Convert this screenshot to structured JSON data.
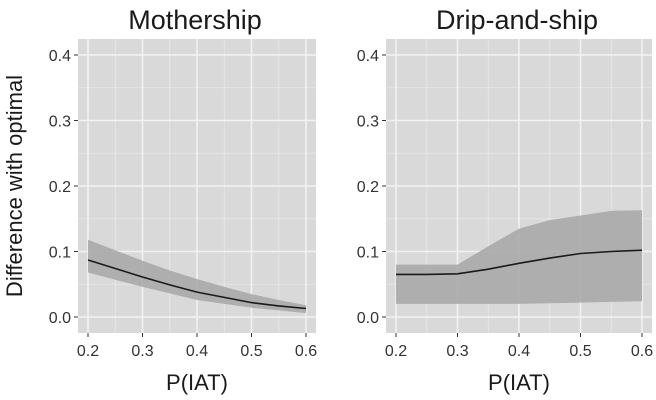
{
  "chart_data": [
    {
      "type": "line",
      "title": "Mothership",
      "xlabel": "P(IAT)",
      "ylabel": "Difference with optimal",
      "xlim": [
        0.2,
        0.6
      ],
      "ylim": [
        0,
        0.4
      ],
      "x_ticks": [
        "0.2",
        "0.3",
        "0.4",
        "0.5",
        "0.6"
      ],
      "y_ticks": [
        "0.0",
        "0.1",
        "0.2",
        "0.3",
        "0.4"
      ],
      "series": [
        {
          "name": "mean",
          "x": [
            0.2,
            0.25,
            0.3,
            0.35,
            0.4,
            0.45,
            0.5,
            0.55,
            0.6
          ],
          "y": [
            0.087,
            0.074,
            0.061,
            0.049,
            0.038,
            0.03,
            0.022,
            0.017,
            0.013
          ],
          "lower": [
            0.068,
            0.057,
            0.046,
            0.036,
            0.026,
            0.02,
            0.014,
            0.01,
            0.006
          ],
          "upper": [
            0.118,
            0.102,
            0.086,
            0.071,
            0.058,
            0.046,
            0.035,
            0.026,
            0.018
          ]
        }
      ],
      "colors": {
        "line": "#1a1a1a",
        "ribbon": "#a6a6a6",
        "panel": "#d9d9d9",
        "grid": "#f2f2f2"
      }
    },
    {
      "type": "line",
      "title": "Drip-and-ship",
      "xlabel": "P(IAT)",
      "ylabel": "",
      "xlim": [
        0.2,
        0.6
      ],
      "ylim": [
        0,
        0.4
      ],
      "x_ticks": [
        "0.2",
        "0.3",
        "0.4",
        "0.5",
        "0.6"
      ],
      "y_ticks": [
        "0.0",
        "0.1",
        "0.2",
        "0.3",
        "0.4"
      ],
      "series": [
        {
          "name": "mean",
          "x": [
            0.2,
            0.25,
            0.3,
            0.35,
            0.4,
            0.45,
            0.5,
            0.55,
            0.6
          ],
          "y": [
            0.065,
            0.065,
            0.066,
            0.073,
            0.082,
            0.09,
            0.097,
            0.1,
            0.102
          ],
          "lower": [
            0.02,
            0.02,
            0.02,
            0.02,
            0.02,
            0.021,
            0.022,
            0.023,
            0.024
          ],
          "upper": [
            0.08,
            0.08,
            0.08,
            0.108,
            0.135,
            0.148,
            0.155,
            0.162,
            0.163
          ]
        }
      ],
      "colors": {
        "line": "#1a1a1a",
        "ribbon": "#a6a6a6",
        "panel": "#d9d9d9",
        "grid": "#f2f2f2"
      }
    }
  ]
}
